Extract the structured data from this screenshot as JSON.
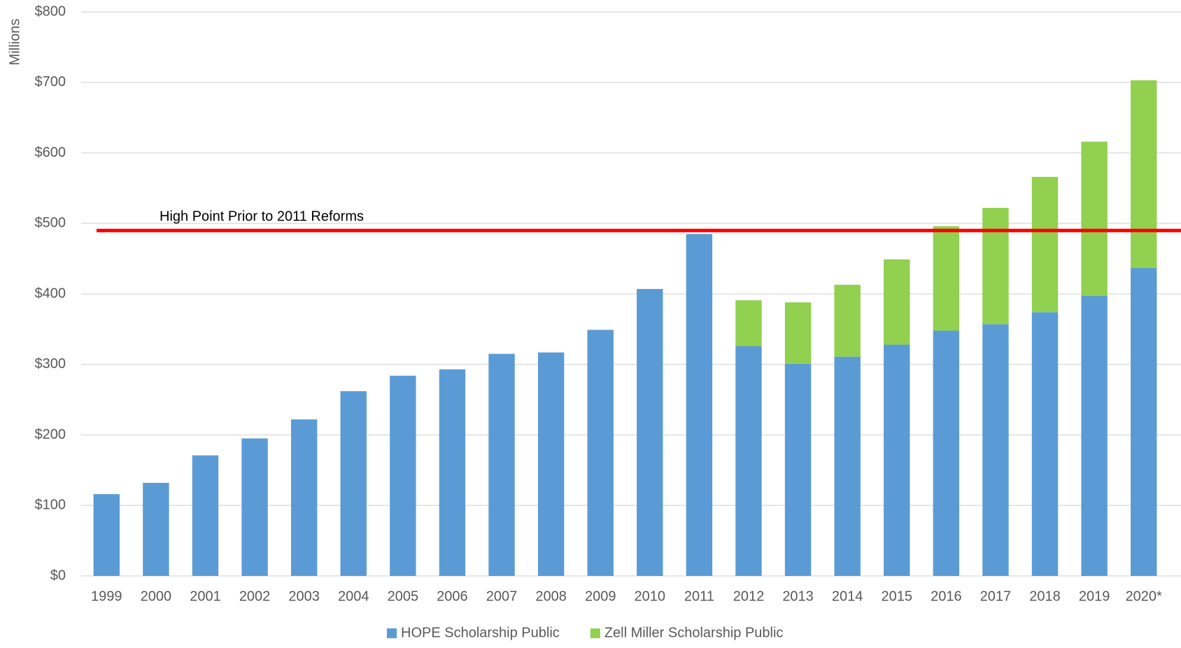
{
  "chart_data": {
    "type": "bar",
    "stacked": true,
    "y_label": "Millions",
    "categories": [
      "1999",
      "2000",
      "2001",
      "2002",
      "2003",
      "2004",
      "2005",
      "2006",
      "2007",
      "2008",
      "2009",
      "2010",
      "2011",
      "2012",
      "2013",
      "2014",
      "2015",
      "2016",
      "2017",
      "2018",
      "2019",
      "2020*"
    ],
    "series": [
      {
        "name": "HOPE Scholarship Public",
        "color": "#5b9bd5",
        "values": [
          116,
          132,
          171,
          195,
          222,
          262,
          284,
          293,
          315,
          317,
          349,
          407,
          485,
          326,
          301,
          311,
          328,
          348,
          357,
          374,
          397,
          437
        ]
      },
      {
        "name": "Zell Miller Scholarship Public",
        "color": "#92d050",
        "values": [
          null,
          null,
          null,
          null,
          null,
          null,
          null,
          null,
          null,
          null,
          null,
          null,
          null,
          65,
          87,
          102,
          121,
          148,
          165,
          192,
          219,
          266
        ]
      }
    ],
    "ylim": [
      0,
      800
    ],
    "yticks": [
      {
        "value": 0,
        "label": "$0"
      },
      {
        "value": 100,
        "label": "$100"
      },
      {
        "value": 200,
        "label": "$200"
      },
      {
        "value": 300,
        "label": "$300"
      },
      {
        "value": 400,
        "label": "$400"
      },
      {
        "value": 500,
        "label": "$500"
      },
      {
        "value": 600,
        "label": "$600"
      },
      {
        "value": 700,
        "label": "$700"
      },
      {
        "value": 800,
        "label": "$800"
      }
    ],
    "grid": true,
    "legend": "bottom",
    "reference_line": {
      "value": 490,
      "label": "High Point Prior to 2011 Reforms",
      "color": "#ff0000"
    }
  }
}
